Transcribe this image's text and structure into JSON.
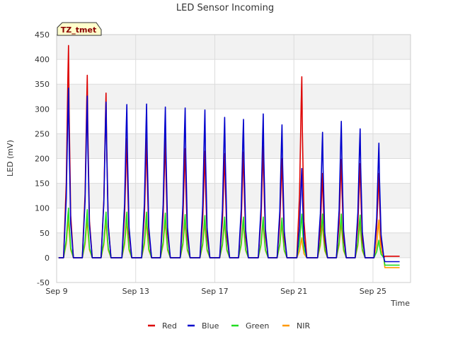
{
  "chart_data": {
    "type": "line",
    "title": "LED Sensor Incoming",
    "xlabel": "Time",
    "ylabel": "LED (mV)",
    "badge": "TZ_tmet",
    "x_ticks": [
      "Sep 9",
      "Sep 13",
      "Sep 17",
      "Sep 21",
      "Sep 25"
    ],
    "x_tick_days": [
      9,
      13,
      17,
      21,
      25
    ],
    "xlim": [
      9,
      26.9
    ],
    "y_ticks": [
      -50,
      0,
      50,
      100,
      150,
      200,
      250,
      300,
      350,
      400,
      450
    ],
    "ylim": [
      -50,
      450
    ],
    "grid": true,
    "legend_position": "bottom-center",
    "day_peaks_x": [
      9.6,
      10.55,
      11.5,
      12.55,
      13.55,
      14.5,
      15.5,
      16.5,
      17.5,
      18.45,
      19.45,
      20.4,
      21.4,
      22.45,
      23.4,
      24.35,
      25.3
    ],
    "series": [
      {
        "name": "Red",
        "color": "#dd0000",
        "peaks": [
          428,
          368,
          332,
          240,
          240,
          240,
          220,
          215,
          210,
          213,
          225,
          200,
          365,
          170,
          198,
          190,
          170
        ],
        "end_value": 3
      },
      {
        "name": "Blue",
        "color": "#0000cc",
        "peaks": [
          342,
          326,
          314,
          309,
          310,
          304,
          302,
          298,
          283,
          279,
          290,
          268,
          180,
          253,
          275,
          260,
          231
        ],
        "end_value": -8
      },
      {
        "name": "Green",
        "color": "#22dd22",
        "peaks": [
          100,
          97,
          92,
          92,
          92,
          90,
          87,
          85,
          82,
          82,
          82,
          80,
          88,
          88,
          88,
          86,
          35
        ],
        "end_value": -15
      },
      {
        "name": "NIR",
        "color": "#ff9900",
        "peaks": [
          80,
          78,
          75,
          75,
          75,
          74,
          73,
          72,
          72,
          72,
          72,
          70,
          40,
          70,
          72,
          70,
          76
        ],
        "end_value": -20
      }
    ]
  }
}
